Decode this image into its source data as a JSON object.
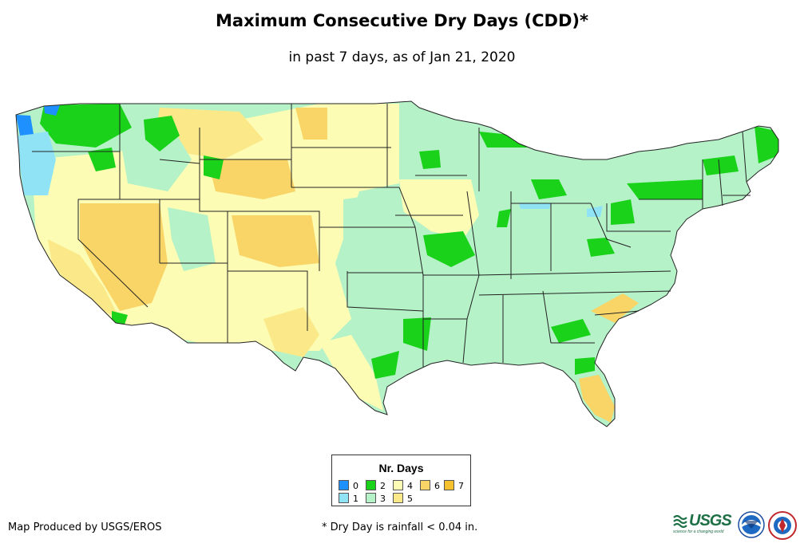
{
  "title": "Maximum Consecutive Dry Days (CDD)*",
  "subtitle": "in past 7 days, as of Jan 21, 2020",
  "legend": {
    "title": "Nr. Days",
    "items": [
      {
        "label": "0",
        "color": "#1e90ff"
      },
      {
        "label": "1",
        "color": "#8fe3f5"
      },
      {
        "label": "2",
        "color": "#19d219"
      },
      {
        "label": "3",
        "color": "#b5f2c8"
      },
      {
        "label": "4",
        "color": "#fdfcb4"
      },
      {
        "label": "5",
        "color": "#fbe989"
      },
      {
        "label": "6",
        "color": "#f9d568"
      },
      {
        "label": "7",
        "color": "#f5c22d"
      }
    ]
  },
  "credit": "Map Produced by USGS/EROS",
  "footnote": "* Dry Day is rainfall < 0.04 in.",
  "logos": {
    "usgs": {
      "text": "USGS",
      "tagline": "science for a changing world",
      "color": "#1d6f46"
    },
    "noaa": {
      "text": "NOAA"
    },
    "nws": {
      "text": "NWS"
    }
  }
}
